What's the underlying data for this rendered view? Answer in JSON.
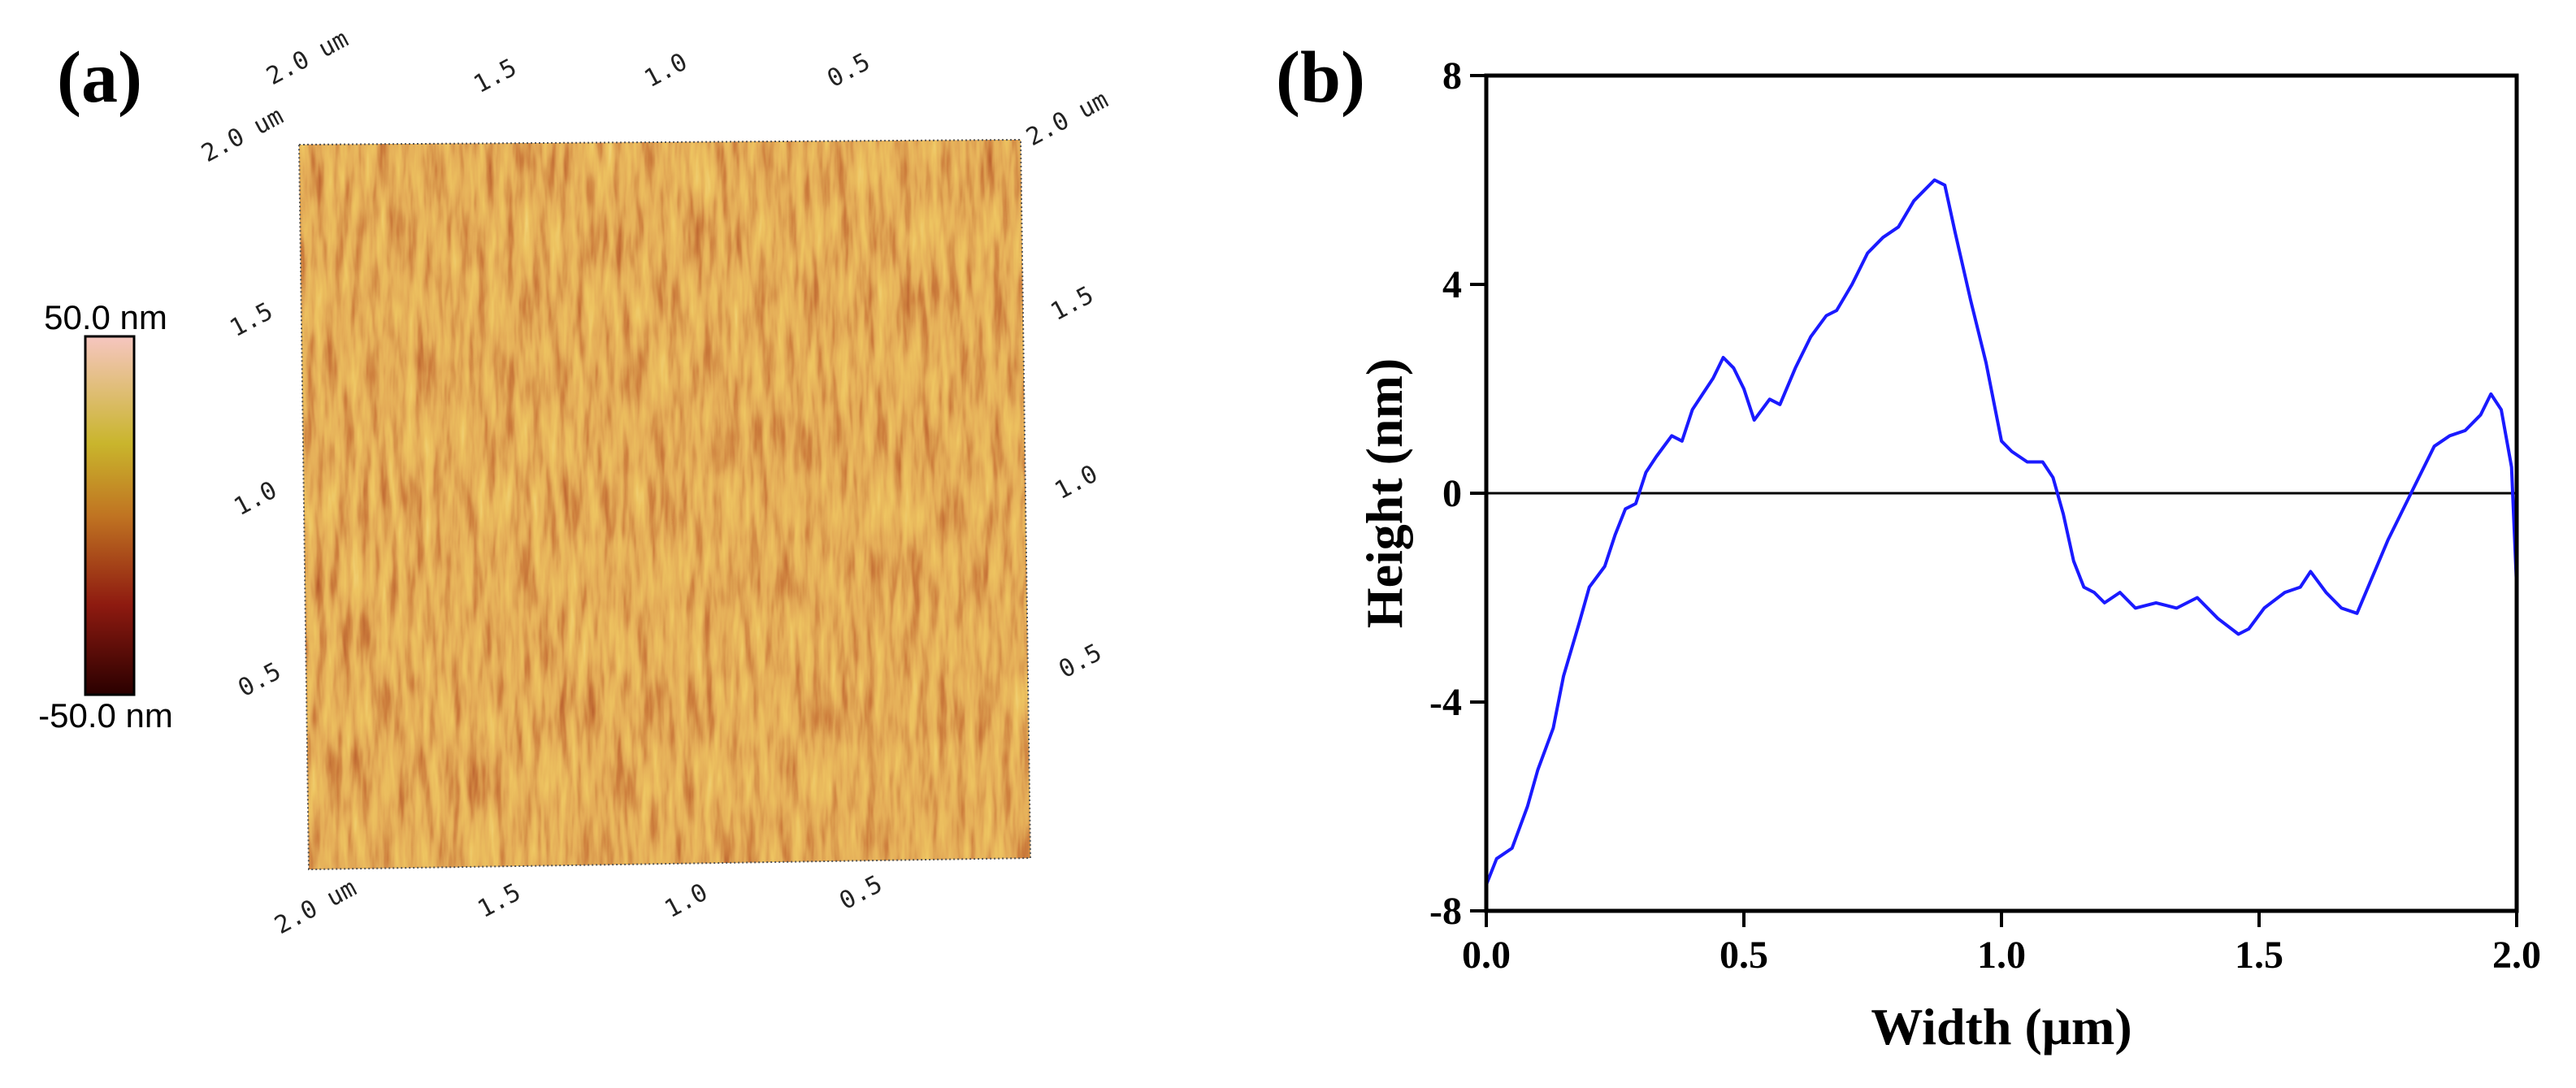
{
  "panel_a": {
    "label": "(a)",
    "scale_top": [
      "2.0 um",
      "1.5",
      "1.0",
      "0.5"
    ],
    "scale_left": [
      "2.0 um",
      "1.5",
      "1.0",
      "0.5"
    ],
    "scale_right": [
      "2.0 um",
      "1.5",
      "1.0",
      "0.5"
    ],
    "scale_bottom": [
      "2.0 um",
      "1.5",
      "1.0",
      "0.5"
    ],
    "colorbar": {
      "max_label": "50.0 nm",
      "min_label": "-50.0 nm"
    }
  },
  "chart_data": {
    "type": "line",
    "panel_label": "(b)",
    "xlabel": "Width (μm)",
    "ylabel": "Height (nm)",
    "x": [
      0.0,
      0.02,
      0.05,
      0.08,
      0.1,
      0.13,
      0.15,
      0.18,
      0.2,
      0.23,
      0.25,
      0.27,
      0.29,
      0.31,
      0.33,
      0.36,
      0.38,
      0.4,
      0.42,
      0.44,
      0.46,
      0.48,
      0.5,
      0.52,
      0.55,
      0.57,
      0.6,
      0.63,
      0.66,
      0.68,
      0.71,
      0.74,
      0.77,
      0.8,
      0.83,
      0.85,
      0.87,
      0.89,
      0.91,
      0.94,
      0.97,
      1.0,
      1.02,
      1.05,
      1.08,
      1.1,
      1.12,
      1.14,
      1.16,
      1.18,
      1.2,
      1.23,
      1.26,
      1.3,
      1.34,
      1.38,
      1.42,
      1.46,
      1.48,
      1.51,
      1.55,
      1.58,
      1.6,
      1.63,
      1.66,
      1.69,
      1.72,
      1.75,
      1.78,
      1.81,
      1.84,
      1.87,
      1.9,
      1.93,
      1.95,
      1.97,
      1.99,
      2.0
    ],
    "series": [
      {
        "name": "Height",
        "color": "#1a1aff",
        "values": [
          -7.5,
          -7.0,
          -6.8,
          -6.0,
          -5.3,
          -4.5,
          -3.5,
          -2.5,
          -1.8,
          -1.4,
          -0.8,
          -0.3,
          -0.2,
          0.4,
          0.7,
          1.1,
          1.0,
          1.6,
          1.9,
          2.2,
          2.6,
          2.4,
          2.0,
          1.4,
          1.8,
          1.7,
          2.4,
          3.0,
          3.4,
          3.5,
          4.0,
          4.6,
          4.9,
          5.1,
          5.6,
          5.8,
          6.0,
          5.9,
          5.0,
          3.7,
          2.5,
          1.0,
          0.8,
          0.6,
          0.6,
          0.3,
          -0.4,
          -1.3,
          -1.8,
          -1.9,
          -2.1,
          -1.9,
          -2.2,
          -2.1,
          -2.2,
          -2.0,
          -2.4,
          -2.7,
          -2.6,
          -2.2,
          -1.9,
          -1.8,
          -1.5,
          -1.9,
          -2.2,
          -2.3,
          -1.6,
          -0.9,
          -0.3,
          0.3,
          0.9,
          1.1,
          1.2,
          1.5,
          1.9,
          1.6,
          0.5,
          -1.8
        ]
      }
    ],
    "reference_line": 0,
    "xlim": [
      0,
      2
    ],
    "xticks": [
      {
        "value": 0,
        "label": "0.0"
      },
      0.5,
      {
        "value": 1,
        "label": "1.0"
      },
      1.5,
      {
        "value": 2,
        "label": "2.0"
      }
    ],
    "ylim": [
      -8,
      8
    ],
    "yticks": [
      -8,
      -4,
      0,
      4,
      8
    ]
  }
}
